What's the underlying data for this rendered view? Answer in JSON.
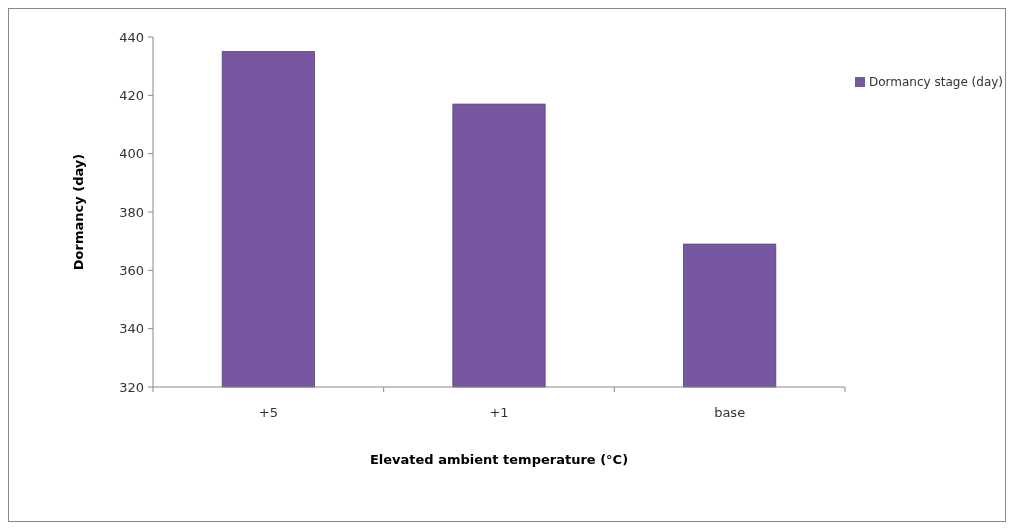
{
  "chart_data": {
    "type": "bar",
    "xlabel": "Elevated ambient temperature (°C)",
    "ylabel": "Dormancy (day)",
    "categories": [
      "+5",
      "+1",
      "base"
    ],
    "series": [
      {
        "name": "Dormancy stage (day)",
        "color": "#7657a0",
        "values": [
          435,
          417,
          369
        ]
      }
    ],
    "ylim": [
      320,
      440
    ],
    "yticks": [
      320,
      340,
      360,
      380,
      400,
      420,
      440
    ],
    "grid": false,
    "legend": "right"
  }
}
